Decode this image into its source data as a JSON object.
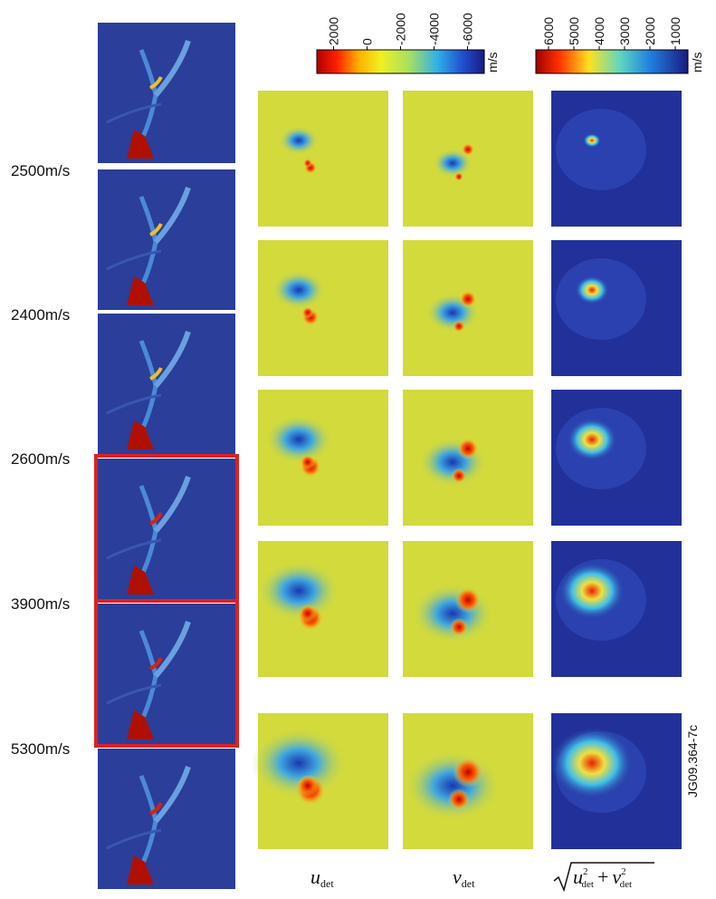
{
  "speed_labels": [
    "2500m/s",
    "2400m/s",
    "2600m/s",
    "3900m/s",
    "5300m/s"
  ],
  "colorbars": [
    {
      "ticks": [
        2000,
        0,
        -2000,
        -4000,
        -6000
      ],
      "unit": "m/s"
    },
    {
      "ticks": [
        6000,
        5000,
        4000,
        3000,
        2000,
        1000
      ],
      "unit": "m/s"
    }
  ],
  "column_labels": {
    "u": {
      "base": "u",
      "sub": "det"
    },
    "v": {
      "base": "v",
      "sub": "det"
    },
    "magnitude": {
      "terms": [
        {
          "base": "u",
          "sub": "det",
          "sup": "2"
        },
        {
          "base": "v",
          "sub": "det",
          "sup": "2"
        }
      ],
      "operator": "+"
    }
  },
  "figure_id": "JG09.364-7c"
}
